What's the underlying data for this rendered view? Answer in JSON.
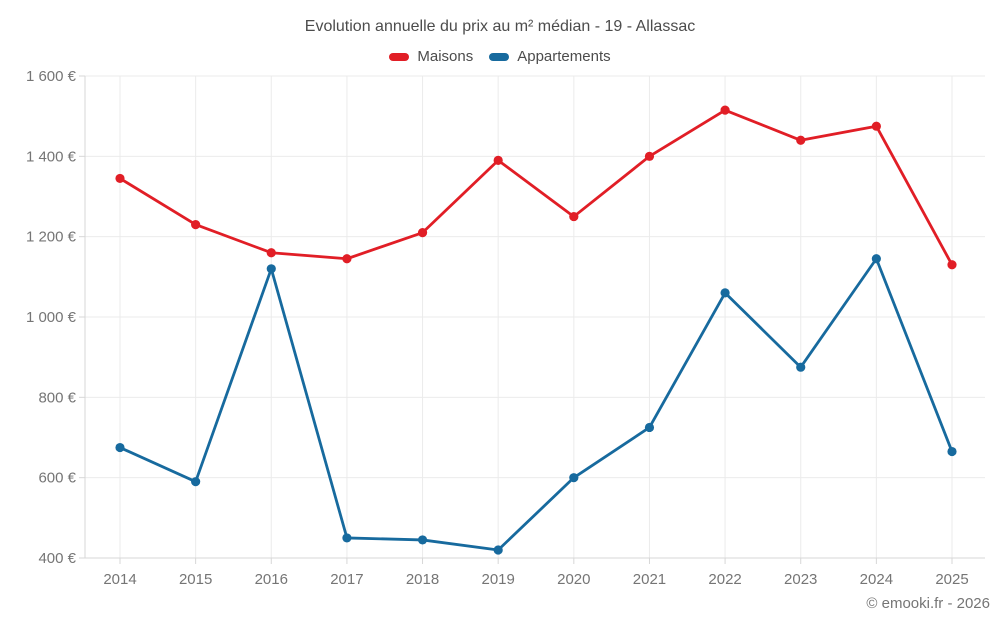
{
  "footer": "© emooki.fr - 2026",
  "colors": {
    "maisons": "#e11e26",
    "appartements": "#176a9e",
    "grid": "#ebebeb",
    "axis": "#d7d7d7",
    "tick": "#d7d7d7",
    "tick_label": "#757575",
    "title_text": "#4c4c4c",
    "background": "#ffffff"
  },
  "chart_data": {
    "type": "line",
    "title": "Evolution annuelle du prix au m² médian - 19 - Allassac",
    "categories": [
      "2014",
      "2015",
      "2016",
      "2017",
      "2018",
      "2019",
      "2020",
      "2021",
      "2022",
      "2023",
      "2024",
      "2025"
    ],
    "series": [
      {
        "name": "Maisons",
        "color": "#e11e26",
        "values": [
          1345,
          1230,
          1160,
          1145,
          1210,
          1390,
          1250,
          1400,
          1515,
          1440,
          1475,
          1130
        ]
      },
      {
        "name": "Appartements",
        "color": "#176a9e",
        "values": [
          675,
          590,
          1120,
          450,
          445,
          420,
          600,
          725,
          1060,
          875,
          1145,
          665
        ]
      }
    ],
    "xlabel": "",
    "ylabel": "",
    "ylim": [
      400,
      1600
    ],
    "ytick_step": 200,
    "ytick_suffix": " €",
    "grid": true,
    "legend_position": "top"
  }
}
